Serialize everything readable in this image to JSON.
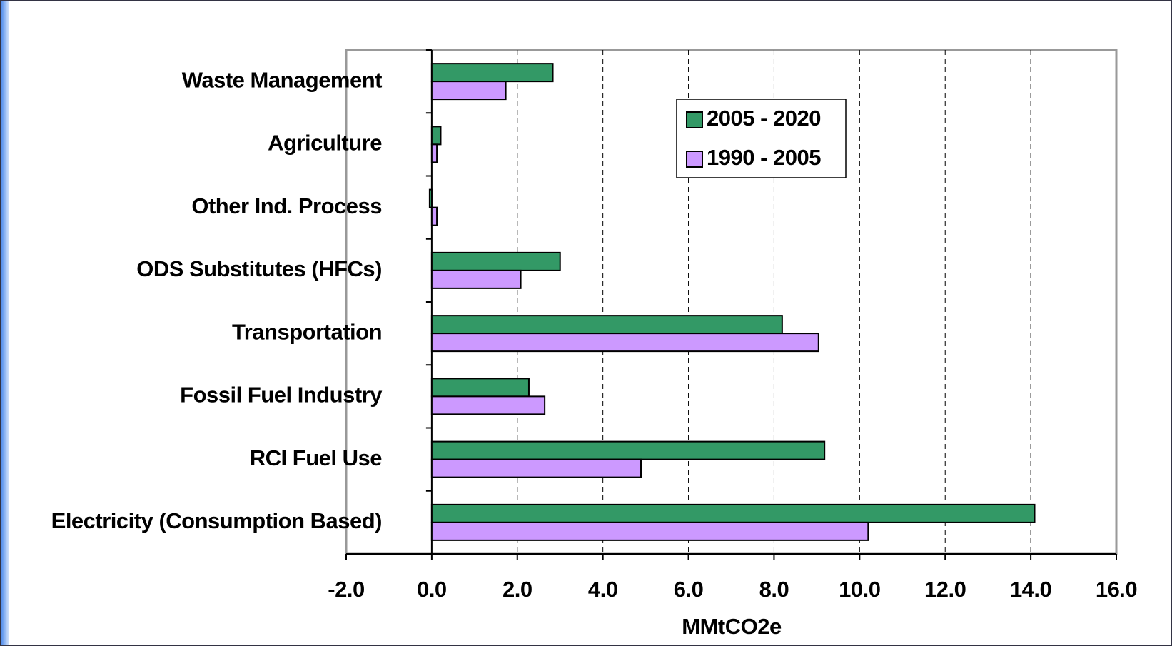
{
  "chart_data": {
    "type": "hbar",
    "x_label": "MMtCO2e",
    "categories": [
      "Waste Management",
      "Agriculture",
      "Other Ind. Process",
      "ODS Substitutes (HFCs)",
      "Transportation",
      "Fossil Fuel Industry",
      "RCI Fuel Use",
      "Electricity (Consumption Based)"
    ],
    "series": [
      {
        "name": "2005 - 2020",
        "color": "#339966",
        "values": [
          2.83,
          0.21,
          -0.05,
          3.0,
          8.19,
          2.27,
          9.18,
          14.09
        ]
      },
      {
        "name": "1990 - 2005",
        "color": "#cc99ff",
        "values": [
          1.73,
          0.12,
          0.12,
          2.08,
          9.04,
          2.64,
          4.89,
          10.2
        ]
      }
    ],
    "xlim": [
      -2,
      16
    ],
    "xticks": [
      {
        "value": -2,
        "label": "-2.0"
      },
      {
        "value": 0,
        "label": "0.0"
      },
      {
        "value": 2,
        "label": "2.0"
      },
      {
        "value": 4,
        "label": "4.0"
      },
      {
        "value": 6,
        "label": "6.0"
      },
      {
        "value": 8,
        "label": "8.0"
      },
      {
        "value": 10,
        "label": "10.0"
      },
      {
        "value": 12,
        "label": "12.0"
      },
      {
        "value": 14,
        "label": "14.0"
      },
      {
        "value": 16,
        "label": "16.0"
      }
    ],
    "grid": true
  }
}
